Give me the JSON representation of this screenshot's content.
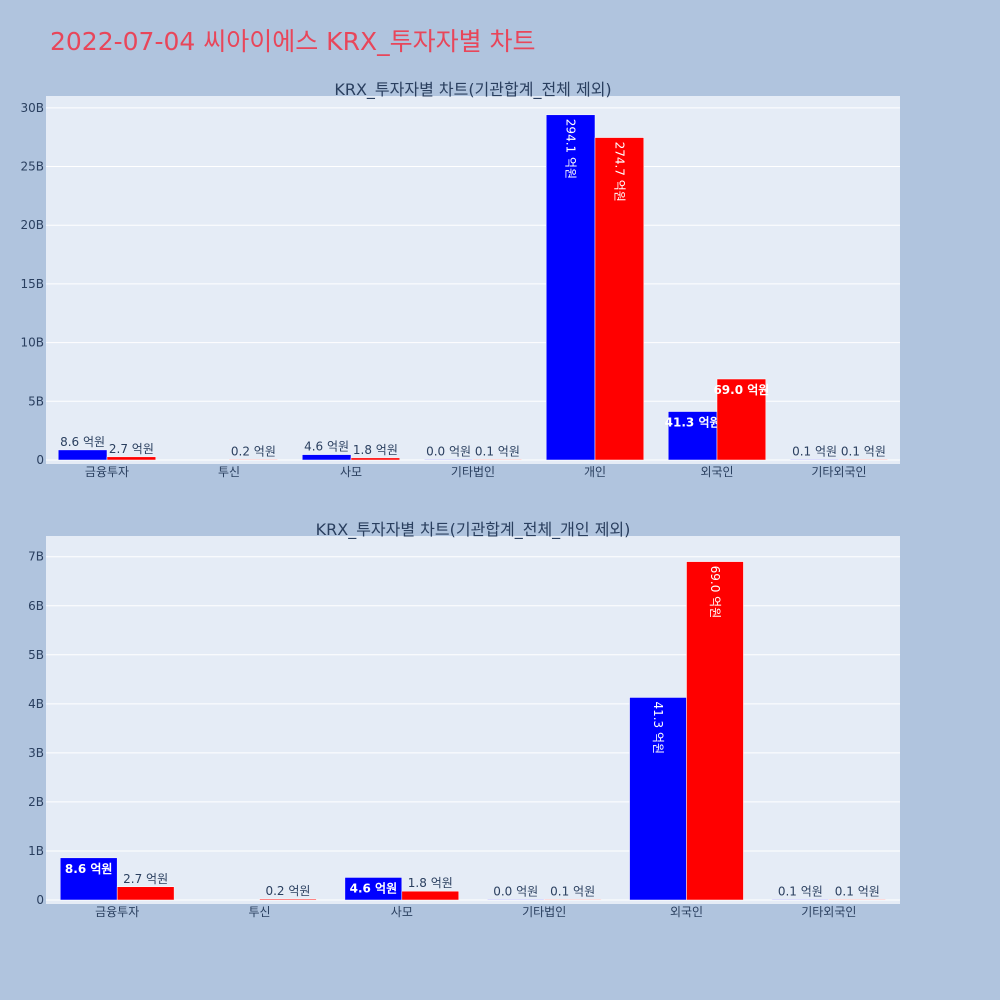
{
  "page_title": "2022-07-04 씨아이에스 KRX_투자자별 차트",
  "colors": {
    "buy": "#0000ff",
    "sell": "#ff0000",
    "plot_bg": "#e5ecf6",
    "page_bg": "#b0c4de",
    "title": "#e8465a"
  },
  "chart_data": [
    {
      "type": "bar",
      "title": "KRX_투자자별 차트(기관합계_전체 제외)",
      "categories": [
        "금융투자",
        "투신",
        "사모",
        "기타법인",
        "개인",
        "외국인",
        "기타외국인"
      ],
      "ylim": [
        0,
        30.5
      ],
      "yticks": [
        0,
        5,
        10,
        15,
        20,
        25,
        30
      ],
      "ytick_labels": [
        "0",
        "5B",
        "10B",
        "15B",
        "20B",
        "25B",
        "30B"
      ],
      "grid": true,
      "legend": "none",
      "series": [
        {
          "color": "#0000ff",
          "values": [
            0.86,
            null,
            0.46,
            0.0,
            29.41,
            4.13,
            0.01
          ],
          "labels": [
            "8.6 억원",
            "",
            "4.6 억원",
            "0.0 억원",
            "294.1 억원",
            "41.3 억원",
            "0.1 억원"
          ]
        },
        {
          "color": "#ff0000",
          "values": [
            0.27,
            0.02,
            0.18,
            0.01,
            27.47,
            6.9,
            0.01
          ],
          "labels": [
            "2.7 억원",
            "0.2 억원",
            "1.8 억원",
            "0.1 억원",
            "274.7 억원",
            "69.0 억원",
            "0.1 억원"
          ]
        }
      ]
    },
    {
      "type": "bar",
      "title": "KRX_투자자별 차트(기관합계_전체_개인 제외)",
      "categories": [
        "금융투자",
        "투신",
        "사모",
        "기타법인",
        "외국인",
        "기타외국인"
      ],
      "ylim": [
        0,
        7.3
      ],
      "yticks": [
        0,
        1,
        2,
        3,
        4,
        5,
        6,
        7
      ],
      "ytick_labels": [
        "0",
        "1B",
        "2B",
        "3B",
        "4B",
        "5B",
        "6B",
        "7B"
      ],
      "grid": true,
      "legend": "none",
      "series": [
        {
          "color": "#0000ff",
          "values": [
            0.86,
            null,
            0.46,
            0.0,
            4.13,
            0.01
          ],
          "labels": [
            "8.6 억원",
            "",
            "4.6 억원",
            "0.0 억원",
            "41.3 억원",
            "0.1 억원"
          ]
        },
        {
          "color": "#ff0000",
          "values": [
            0.27,
            0.02,
            0.18,
            0.01,
            6.9,
            0.01
          ],
          "labels": [
            "2.7 억원",
            "0.2 억원",
            "1.8 억원",
            "0.1 억원",
            "69.0 억원",
            "0.1 억원"
          ]
        }
      ]
    }
  ]
}
